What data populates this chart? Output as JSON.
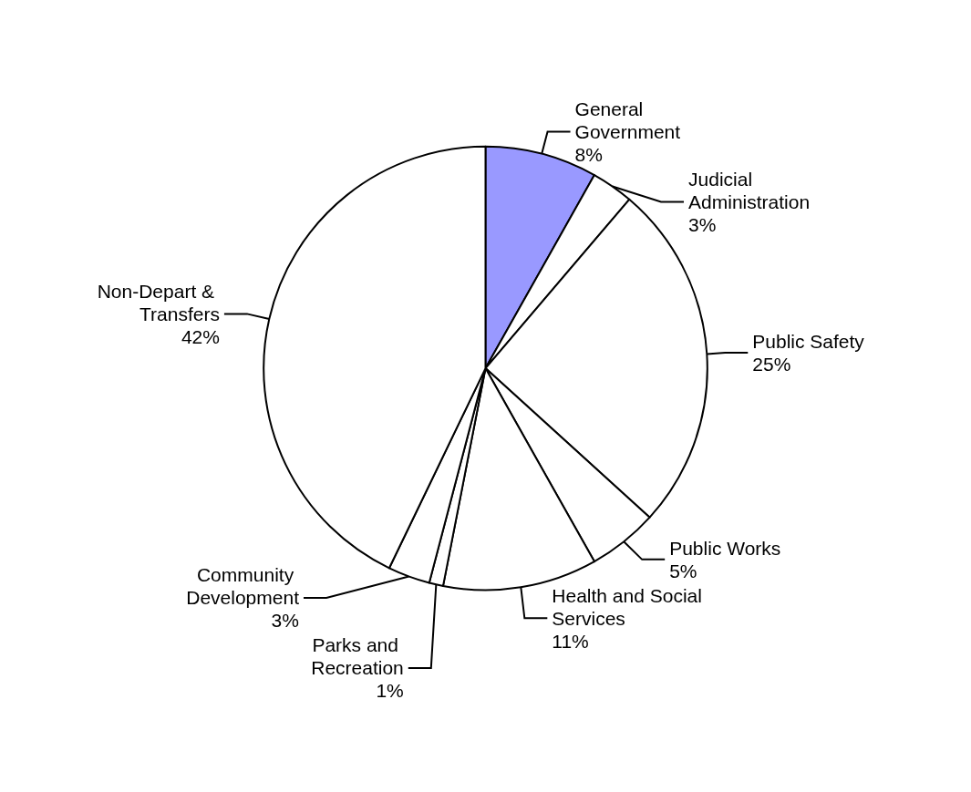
{
  "chart_data": {
    "type": "pie",
    "categories": [
      "General Government",
      "Judicial Administration",
      "Public Safety",
      "Public Works",
      "Health and Social Services",
      "Parks and Recreation",
      "Community Development",
      "Non-Depart & Transfers"
    ],
    "values": [
      8,
      3,
      25,
      5,
      11,
      1,
      3,
      42
    ],
    "value_labels": [
      "8%",
      "3%",
      "25%",
      "5%",
      "11%",
      "1%",
      "3%",
      "42%"
    ],
    "colors": [
      "#9999ff",
      "#ffffff",
      "#ffffff",
      "#ffffff",
      "#ffffff",
      "#ffffff",
      "#ffffff",
      "#ffffff"
    ],
    "legend": false
  }
}
